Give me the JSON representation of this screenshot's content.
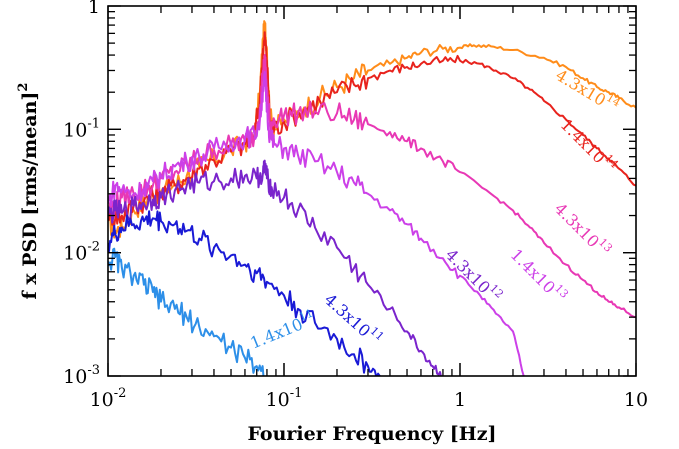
{
  "chart_data": {
    "type": "line",
    "title": "",
    "xlabel": "Fourier Frequency [Hz]",
    "ylabel_main": "f x PSD [rms/mean]",
    "ylabel_sup": "2",
    "xscale": "log",
    "yscale": "log",
    "xlim": [
      0.01,
      10
    ],
    "ylim": [
      0.001,
      1
    ],
    "grid": false,
    "x_ticks": [
      {
        "value": 0.01,
        "base": "10",
        "exp": "-2"
      },
      {
        "value": 0.1,
        "base": "10",
        "exp": "-1"
      },
      {
        "value": 1,
        "base": "1",
        "exp": ""
      },
      {
        "value": 10,
        "base": "10",
        "exp": ""
      }
    ],
    "y_ticks": [
      {
        "value": 0.001,
        "base": "10",
        "exp": "-3"
      },
      {
        "value": 0.01,
        "base": "10",
        "exp": "-2"
      },
      {
        "value": 0.1,
        "base": "10",
        "exp": "-1"
      },
      {
        "value": 1,
        "base": "1",
        "exp": ""
      }
    ],
    "series": [
      {
        "color": "#ff8c1a",
        "label": {
          "base": "4.3x10",
          "exp": "14"
        },
        "points": [
          [
            0.01,
            0.018
          ],
          [
            0.011,
            0.015
          ],
          [
            0.012,
            0.016
          ],
          [
            0.014,
            0.022
          ],
          [
            0.016,
            0.026
          ],
          [
            0.018,
            0.03
          ],
          [
            0.02,
            0.031
          ],
          [
            0.024,
            0.036
          ],
          [
            0.028,
            0.042
          ],
          [
            0.033,
            0.05
          ],
          [
            0.04,
            0.058
          ],
          [
            0.05,
            0.068
          ],
          [
            0.06,
            0.078
          ],
          [
            0.068,
            0.092
          ],
          [
            0.073,
            0.2
          ],
          [
            0.076,
            0.55
          ],
          [
            0.078,
            0.68
          ],
          [
            0.08,
            0.45
          ],
          [
            0.083,
            0.13
          ],
          [
            0.088,
            0.1
          ],
          [
            0.1,
            0.12
          ],
          [
            0.13,
            0.15
          ],
          [
            0.16,
            0.18
          ],
          [
            0.2,
            0.22
          ],
          [
            0.25,
            0.26
          ],
          [
            0.3,
            0.3
          ],
          [
            0.4,
            0.34
          ],
          [
            0.5,
            0.38
          ],
          [
            0.6,
            0.42
          ],
          [
            0.8,
            0.45
          ],
          [
            1,
            0.46
          ],
          [
            1.2,
            0.48
          ],
          [
            1.5,
            0.47
          ],
          [
            2,
            0.44
          ],
          [
            3,
            0.38
          ],
          [
            4,
            0.32
          ],
          [
            5,
            0.26
          ],
          [
            6,
            0.22
          ],
          [
            7,
            0.2
          ],
          [
            8,
            0.18
          ],
          [
            10,
            0.15
          ]
        ]
      },
      {
        "color": "#e8231d",
        "label": {
          "base": "1.4x10",
          "exp": "14"
        },
        "points": [
          [
            0.01,
            0.022
          ],
          [
            0.011,
            0.019
          ],
          [
            0.012,
            0.02
          ],
          [
            0.014,
            0.024
          ],
          [
            0.016,
            0.026
          ],
          [
            0.018,
            0.029
          ],
          [
            0.02,
            0.03
          ],
          [
            0.024,
            0.035
          ],
          [
            0.028,
            0.04
          ],
          [
            0.033,
            0.048
          ],
          [
            0.04,
            0.056
          ],
          [
            0.05,
            0.066
          ],
          [
            0.06,
            0.076
          ],
          [
            0.068,
            0.09
          ],
          [
            0.073,
            0.18
          ],
          [
            0.076,
            0.45
          ],
          [
            0.078,
            0.55
          ],
          [
            0.08,
            0.36
          ],
          [
            0.083,
            0.12
          ],
          [
            0.088,
            0.1
          ],
          [
            0.1,
            0.115
          ],
          [
            0.13,
            0.145
          ],
          [
            0.16,
            0.17
          ],
          [
            0.2,
            0.2
          ],
          [
            0.25,
            0.23
          ],
          [
            0.3,
            0.26
          ],
          [
            0.4,
            0.3
          ],
          [
            0.5,
            0.32
          ],
          [
            0.6,
            0.34
          ],
          [
            0.8,
            0.36
          ],
          [
            1,
            0.36
          ],
          [
            1.3,
            0.34
          ],
          [
            1.6,
            0.3
          ],
          [
            2,
            0.26
          ],
          [
            2.5,
            0.21
          ],
          [
            3,
            0.17
          ],
          [
            4,
            0.12
          ],
          [
            5,
            0.09
          ],
          [
            6,
            0.07
          ],
          [
            7,
            0.058
          ],
          [
            8,
            0.048
          ],
          [
            10,
            0.035
          ]
        ]
      },
      {
        "color": "#e838b5",
        "label": {
          "base": "4.3x10",
          "exp": "13"
        },
        "points": [
          [
            0.01,
            0.022
          ],
          [
            0.011,
            0.025
          ],
          [
            0.012,
            0.028
          ],
          [
            0.014,
            0.03
          ],
          [
            0.016,
            0.033
          ],
          [
            0.018,
            0.035
          ],
          [
            0.02,
            0.04
          ],
          [
            0.024,
            0.045
          ],
          [
            0.028,
            0.052
          ],
          [
            0.033,
            0.06
          ],
          [
            0.04,
            0.068
          ],
          [
            0.05,
            0.075
          ],
          [
            0.06,
            0.08
          ],
          [
            0.068,
            0.088
          ],
          [
            0.073,
            0.15
          ],
          [
            0.076,
            0.3
          ],
          [
            0.078,
            0.35
          ],
          [
            0.08,
            0.22
          ],
          [
            0.083,
            0.11
          ],
          [
            0.088,
            0.12
          ],
          [
            0.1,
            0.13
          ],
          [
            0.12,
            0.135
          ],
          [
            0.15,
            0.14
          ],
          [
            0.2,
            0.135
          ],
          [
            0.25,
            0.12
          ],
          [
            0.3,
            0.11
          ],
          [
            0.4,
            0.095
          ],
          [
            0.5,
            0.08
          ],
          [
            0.6,
            0.07
          ],
          [
            0.8,
            0.055
          ],
          [
            1,
            0.045
          ],
          [
            1.5,
            0.03
          ],
          [
            2,
            0.022
          ],
          [
            2.5,
            0.016
          ],
          [
            3,
            0.012
          ],
          [
            4,
            0.008
          ],
          [
            5,
            0.006
          ],
          [
            6,
            0.0048
          ],
          [
            7,
            0.004
          ],
          [
            8,
            0.0036
          ],
          [
            10,
            0.003
          ]
        ]
      },
      {
        "color": "#cc40e8",
        "label": {
          "base": "1.4x10",
          "exp": "13"
        },
        "points": [
          [
            0.01,
            0.025
          ],
          [
            0.011,
            0.035
          ],
          [
            0.012,
            0.032
          ],
          [
            0.014,
            0.03
          ],
          [
            0.016,
            0.033
          ],
          [
            0.018,
            0.038
          ],
          [
            0.02,
            0.042
          ],
          [
            0.024,
            0.05
          ],
          [
            0.028,
            0.055
          ],
          [
            0.033,
            0.06
          ],
          [
            0.04,
            0.07
          ],
          [
            0.05,
            0.08
          ],
          [
            0.06,
            0.085
          ],
          [
            0.068,
            0.09
          ],
          [
            0.073,
            0.12
          ],
          [
            0.076,
            0.22
          ],
          [
            0.078,
            0.25
          ],
          [
            0.08,
            0.15
          ],
          [
            0.083,
            0.09
          ],
          [
            0.088,
            0.075
          ],
          [
            0.1,
            0.07
          ],
          [
            0.12,
            0.062
          ],
          [
            0.15,
            0.055
          ],
          [
            0.2,
            0.045
          ],
          [
            0.25,
            0.037
          ],
          [
            0.3,
            0.03
          ],
          [
            0.4,
            0.022
          ],
          [
            0.5,
            0.017
          ],
          [
            0.6,
            0.013
          ],
          [
            0.8,
            0.009
          ],
          [
            1,
            0.0065
          ],
          [
            1.3,
            0.0045
          ],
          [
            1.6,
            0.0032
          ],
          [
            2,
            0.0023
          ],
          [
            2.3,
            0.001
          ]
        ]
      },
      {
        "color": "#7a24cc",
        "label": {
          "base": "4.3x10",
          "exp": "12"
        },
        "points": [
          [
            0.01,
            0.02
          ],
          [
            0.011,
            0.022
          ],
          [
            0.012,
            0.021
          ],
          [
            0.014,
            0.024
          ],
          [
            0.016,
            0.025
          ],
          [
            0.018,
            0.027
          ],
          [
            0.02,
            0.028
          ],
          [
            0.024,
            0.032
          ],
          [
            0.028,
            0.035
          ],
          [
            0.033,
            0.037
          ],
          [
            0.04,
            0.038
          ],
          [
            0.05,
            0.04
          ],
          [
            0.06,
            0.042
          ],
          [
            0.07,
            0.04
          ],
          [
            0.076,
            0.045
          ],
          [
            0.078,
            0.05
          ],
          [
            0.08,
            0.04
          ],
          [
            0.085,
            0.034
          ],
          [
            0.1,
            0.028
          ],
          [
            0.12,
            0.022
          ],
          [
            0.15,
            0.016
          ],
          [
            0.2,
            0.011
          ],
          [
            0.25,
            0.0075
          ],
          [
            0.3,
            0.0055
          ],
          [
            0.4,
            0.0035
          ],
          [
            0.5,
            0.0023
          ],
          [
            0.6,
            0.0016
          ],
          [
            0.7,
            0.0012
          ],
          [
            0.8,
            0.001
          ]
        ]
      },
      {
        "color": "#1a1ad6",
        "label": {
          "base": "4.3x10",
          "exp": "11"
        },
        "points": [
          [
            0.01,
            0.012
          ],
          [
            0.011,
            0.014
          ],
          [
            0.012,
            0.016
          ],
          [
            0.014,
            0.017
          ],
          [
            0.016,
            0.018
          ],
          [
            0.018,
            0.019
          ],
          [
            0.02,
            0.018
          ],
          [
            0.024,
            0.017
          ],
          [
            0.028,
            0.015
          ],
          [
            0.033,
            0.013
          ],
          [
            0.04,
            0.011
          ],
          [
            0.05,
            0.0095
          ],
          [
            0.06,
            0.008
          ],
          [
            0.07,
            0.0068
          ],
          [
            0.08,
            0.0058
          ],
          [
            0.1,
            0.0045
          ],
          [
            0.12,
            0.0035
          ],
          [
            0.15,
            0.0027
          ],
          [
            0.2,
            0.002
          ],
          [
            0.25,
            0.0015
          ],
          [
            0.3,
            0.0012
          ],
          [
            0.35,
            0.001
          ]
        ]
      },
      {
        "color": "#2d8fe8",
        "label": {
          "base": "1.4x10",
          "exp": "11"
        },
        "points": [
          [
            0.01,
            0.0085
          ],
          [
            0.011,
            0.0092
          ],
          [
            0.012,
            0.0075
          ],
          [
            0.014,
            0.0065
          ],
          [
            0.016,
            0.0055
          ],
          [
            0.018,
            0.0048
          ],
          [
            0.02,
            0.004
          ],
          [
            0.024,
            0.0035
          ],
          [
            0.028,
            0.003
          ],
          [
            0.033,
            0.0025
          ],
          [
            0.04,
            0.0021
          ],
          [
            0.05,
            0.0017
          ],
          [
            0.06,
            0.0014
          ],
          [
            0.07,
            0.0012
          ],
          [
            0.08,
            0.001
          ]
        ]
      }
    ]
  }
}
